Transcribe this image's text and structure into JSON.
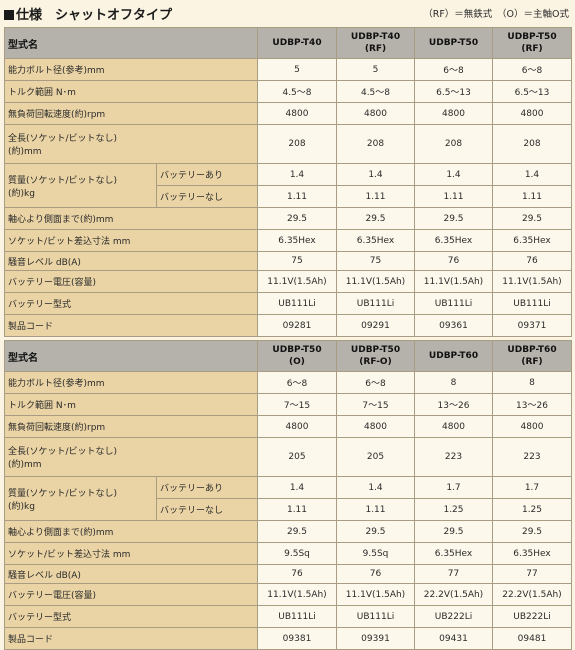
{
  "header": {
    "title": "仕様　シャットオフタイプ",
    "note": "（RF）＝無鉄式　（O）＝主軸O式"
  },
  "tables": [
    {
      "label": "型式名",
      "models": [
        [
          "UDBP-T40",
          ""
        ],
        [
          "UDBP-T40",
          "(RF)"
        ],
        [
          "UDBP-T50",
          ""
        ],
        [
          "UDBP-T50",
          "(RF)"
        ]
      ],
      "rows": {
        "bolt": {
          "label": "能力ボルト径(参考)mm",
          "values": [
            "5",
            "5",
            "6～8",
            "6～8"
          ]
        },
        "torque": {
          "label": "トルク範囲 N･m",
          "values": [
            "4.5～8",
            "4.5～8",
            "6.5～13",
            "6.5～13"
          ]
        },
        "speed": {
          "label": "無負荷回転速度(約)rpm",
          "values": [
            "4800",
            "4800",
            "4800",
            "4800"
          ]
        },
        "length": {
          "label1": "全長(ソケット/ビットなし)",
          "label2": "(約)mm",
          "values": [
            "208",
            "208",
            "208",
            "208"
          ]
        },
        "mass": {
          "label1": "質量(ソケット/ビットなし)",
          "label2": "(約)kg",
          "with_label": "バッテリーあり",
          "with": [
            "1.4",
            "1.4",
            "1.4",
            "1.4"
          ],
          "without_label": "バッテリーなし",
          "without": [
            "1.11",
            "1.11",
            "1.11",
            "1.11"
          ]
        },
        "side": {
          "label": "軸心より側面まで(約)mm",
          "values": [
            "29.5",
            "29.5",
            "29.5",
            "29.5"
          ]
        },
        "socket": {
          "label": "ソケット/ビット差込寸法 mm",
          "values": [
            "6.35Hex",
            "6.35Hex",
            "6.35Hex",
            "6.35Hex"
          ]
        },
        "noise": {
          "label": "騒音レベル dB(A)",
          "values": [
            "75",
            "75",
            "76",
            "76"
          ]
        },
        "voltage": {
          "label": "バッテリー電圧(容量)",
          "values": [
            "11.1V(1.5Ah)",
            "11.1V(1.5Ah)",
            "11.1V(1.5Ah)",
            "11.1V(1.5Ah)"
          ]
        },
        "battery": {
          "label": "バッテリー型式",
          "values": [
            "UB111Li",
            "UB111Li",
            "UB111Li",
            "UB111Li"
          ]
        },
        "code": {
          "label": "製品コード",
          "values": [
            "09281",
            "09291",
            "09361",
            "09371"
          ]
        }
      }
    },
    {
      "label": "型式名",
      "models": [
        [
          "UDBP-T50",
          "(O)"
        ],
        [
          "UDBP-T50",
          "(RF-O)"
        ],
        [
          "UDBP-T60",
          ""
        ],
        [
          "UDBP-T60",
          "(RF)"
        ]
      ],
      "rows": {
        "bolt": {
          "label": "能力ボルト径(参考)mm",
          "values": [
            "6～8",
            "6～8",
            "8",
            "8"
          ]
        },
        "torque": {
          "label": "トルク範囲 N･m",
          "values": [
            "7～15",
            "7～15",
            "13～26",
            "13～26"
          ]
        },
        "speed": {
          "label": "無負荷回転速度(約)rpm",
          "values": [
            "4800",
            "4800",
            "4800",
            "4800"
          ]
        },
        "length": {
          "label1": "全長(ソケット/ビットなし)",
          "label2": "(約)mm",
          "values": [
            "205",
            "205",
            "223",
            "223"
          ]
        },
        "mass": {
          "label1": "質量(ソケット/ビットなし)",
          "label2": "(約)kg",
          "with_label": "バッテリーあり",
          "with": [
            "1.4",
            "1.4",
            "1.7",
            "1.7"
          ],
          "without_label": "バッテリーなし",
          "without": [
            "1.11",
            "1.11",
            "1.25",
            "1.25"
          ]
        },
        "side": {
          "label": "軸心より側面まで(約)mm",
          "values": [
            "29.5",
            "29.5",
            "29.5",
            "29.5"
          ]
        },
        "socket": {
          "label": "ソケット/ビット差込寸法 mm",
          "values": [
            "9.5Sq",
            "9.5Sq",
            "6.35Hex",
            "6.35Hex"
          ]
        },
        "noise": {
          "label": "騒音レベル dB(A)",
          "values": [
            "76",
            "76",
            "77",
            "77"
          ]
        },
        "voltage": {
          "label": "バッテリー電圧(容量)",
          "values": [
            "11.1V(1.5Ah)",
            "11.1V(1.5Ah)",
            "22.2V(1.5Ah)",
            "22.2V(1.5Ah)"
          ]
        },
        "battery": {
          "label": "バッテリー型式",
          "values": [
            "UB111Li",
            "UB111Li",
            "UB222Li",
            "UB222Li"
          ]
        },
        "code": {
          "label": "製品コード",
          "values": [
            "09381",
            "09391",
            "09431",
            "09481"
          ]
        }
      }
    }
  ]
}
